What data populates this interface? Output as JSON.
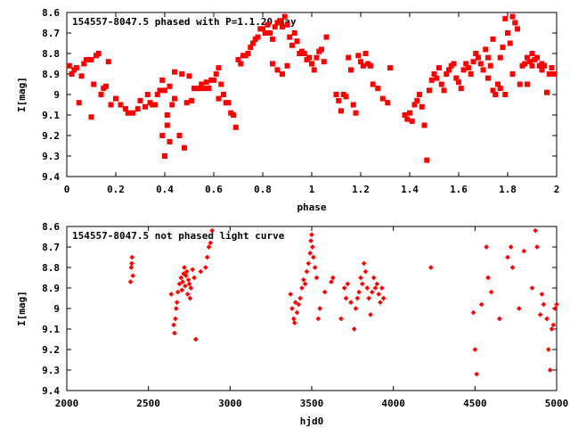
{
  "chart_data": [
    {
      "type": "scatter",
      "title": "154557-8047.5 phased with P=1.1.20 day",
      "xlabel": "phase",
      "ylabel": "I[mag]",
      "xlim": [
        0,
        2
      ],
      "ylim": [
        9.4,
        8.6
      ],
      "y_inverted": true,
      "x_ticks": [
        0,
        0.2,
        0.4,
        0.6,
        0.8,
        1,
        1.2,
        1.4,
        1.6,
        1.8,
        2
      ],
      "x_tick_labels": [
        "0",
        "0.2",
        "0.4",
        "0.6",
        "0.8",
        "1",
        "1.2",
        "1.4",
        "1.6",
        "1.8",
        "2"
      ],
      "y_ticks": [
        8.6,
        8.7,
        8.8,
        8.9,
        9.0,
        9.1,
        9.2,
        9.3,
        9.4
      ],
      "y_tick_labels": [
        "8.6",
        "8.7",
        "8.8",
        "8.9",
        "9",
        "9.1",
        "9.2",
        "9.3",
        "9.4"
      ],
      "marker_color": "#ff0000",
      "grid": false,
      "points": [
        [
          0.01,
          8.86
        ],
        [
          0.02,
          8.9
        ],
        [
          0.03,
          8.88
        ],
        [
          0.04,
          8.87
        ],
        [
          0.05,
          9.04
        ],
        [
          0.06,
          8.91
        ],
        [
          0.07,
          8.85
        ],
        [
          0.08,
          8.83
        ],
        [
          0.09,
          8.83
        ],
        [
          0.1,
          8.83
        ],
        [
          0.11,
          8.95
        ],
        [
          0.1,
          9.11
        ],
        [
          0.12,
          8.81
        ],
        [
          0.13,
          8.8
        ],
        [
          0.14,
          9.0
        ],
        [
          0.15,
          8.97
        ],
        [
          0.16,
          8.96
        ],
        [
          0.17,
          8.84
        ],
        [
          0.18,
          9.05
        ],
        [
          0.2,
          9.02
        ],
        [
          0.22,
          9.05
        ],
        [
          0.24,
          9.07
        ],
        [
          0.25,
          9.09
        ],
        [
          0.27,
          9.09
        ],
        [
          0.29,
          9.07
        ],
        [
          0.3,
          9.03
        ],
        [
          0.32,
          9.06
        ],
        [
          0.33,
          9.0
        ],
        [
          0.34,
          9.04
        ],
        [
          0.35,
          9.05
        ],
        [
          0.36,
          9.05
        ],
        [
          0.37,
          9.0
        ],
        [
          0.38,
          8.98
        ],
        [
          0.39,
          9.2
        ],
        [
          0.4,
          9.3
        ],
        [
          0.41,
          9.15
        ],
        [
          0.42,
          9.23
        ],
        [
          0.39,
          8.93
        ],
        [
          0.4,
          8.98
        ],
        [
          0.41,
          9.1
        ],
        [
          0.42,
          8.96
        ],
        [
          0.43,
          9.05
        ],
        [
          0.44,
          9.02
        ],
        [
          0.44,
          8.89
        ],
        [
          0.46,
          9.2
        ],
        [
          0.47,
          8.9
        ],
        [
          0.48,
          9.26
        ],
        [
          0.49,
          9.04
        ],
        [
          0.5,
          8.91
        ],
        [
          0.51,
          9.03
        ],
        [
          0.52,
          8.97
        ],
        [
          0.53,
          8.97
        ],
        [
          0.54,
          8.97
        ],
        [
          0.55,
          8.95
        ],
        [
          0.56,
          8.97
        ],
        [
          0.57,
          8.94
        ],
        [
          0.58,
          8.97
        ],
        [
          0.59,
          8.93
        ],
        [
          0.6,
          8.93
        ],
        [
          0.61,
          8.9
        ],
        [
          0.62,
          8.87
        ],
        [
          0.62,
          9.02
        ],
        [
          0.63,
          8.95
        ],
        [
          0.64,
          9.0
        ],
        [
          0.65,
          9.04
        ],
        [
          0.66,
          9.04
        ],
        [
          0.67,
          9.09
        ],
        [
          0.68,
          9.1
        ],
        [
          0.69,
          9.16
        ],
        [
          0.7,
          8.83
        ],
        [
          0.71,
          8.85
        ],
        [
          0.72,
          8.81
        ],
        [
          0.73,
          8.81
        ],
        [
          0.74,
          8.8
        ],
        [
          0.75,
          8.77
        ],
        [
          0.76,
          8.75
        ],
        [
          0.77,
          8.73
        ],
        [
          0.78,
          8.72
        ],
        [
          0.79,
          8.68
        ],
        [
          0.8,
          8.68
        ],
        [
          0.81,
          8.7
        ],
        [
          0.82,
          8.66
        ],
        [
          0.83,
          8.7
        ],
        [
          0.84,
          8.73
        ],
        [
          0.85,
          8.67
        ],
        [
          0.86,
          8.65
        ],
        [
          0.87,
          8.64
        ],
        [
          0.88,
          8.67
        ],
        [
          0.89,
          8.62
        ],
        [
          0.9,
          8.66
        ],
        [
          0.91,
          8.72
        ],
        [
          0.92,
          8.76
        ],
        [
          0.93,
          8.7
        ],
        [
          0.94,
          8.74
        ],
        [
          0.95,
          8.8
        ],
        [
          0.96,
          8.79
        ],
        [
          0.97,
          8.8
        ],
        [
          0.98,
          8.83
        ],
        [
          0.99,
          8.82
        ],
        [
          1.0,
          8.85
        ],
        [
          1.01,
          8.88
        ],
        [
          1.02,
          8.82
        ],
        [
          1.03,
          8.79
        ],
        [
          1.04,
          8.78
        ],
        [
          1.05,
          8.84
        ],
        [
          1.06,
          8.72
        ],
        [
          0.9,
          8.86
        ],
        [
          0.88,
          8.9
        ],
        [
          0.86,
          8.88
        ],
        [
          0.84,
          8.85
        ],
        [
          1.1,
          9.0
        ],
        [
          1.11,
          9.03
        ],
        [
          1.12,
          9.08
        ],
        [
          1.13,
          9.0
        ],
        [
          1.14,
          9.01
        ],
        [
          1.15,
          8.82
        ],
        [
          1.16,
          8.88
        ],
        [
          1.17,
          9.05
        ],
        [
          1.18,
          9.09
        ],
        [
          1.19,
          8.81
        ],
        [
          1.2,
          8.84
        ],
        [
          1.21,
          8.86
        ],
        [
          1.22,
          8.8
        ],
        [
          1.23,
          8.85
        ],
        [
          1.24,
          8.86
        ],
        [
          1.25,
          8.95
        ],
        [
          1.27,
          8.97
        ],
        [
          1.29,
          9.02
        ],
        [
          1.31,
          9.04
        ],
        [
          1.32,
          8.87
        ],
        [
          1.38,
          9.1
        ],
        [
          1.39,
          9.12
        ],
        [
          1.4,
          9.09
        ],
        [
          1.41,
          9.13
        ],
        [
          1.42,
          9.05
        ],
        [
          1.43,
          9.03
        ],
        [
          1.44,
          9.0
        ],
        [
          1.45,
          9.06
        ],
        [
          1.46,
          9.15
        ],
        [
          1.47,
          9.32
        ],
        [
          1.48,
          8.98
        ],
        [
          1.49,
          8.93
        ],
        [
          1.5,
          8.9
        ],
        [
          1.51,
          8.92
        ],
        [
          1.52,
          8.87
        ],
        [
          1.53,
          8.95
        ],
        [
          1.54,
          8.98
        ],
        [
          1.55,
          8.9
        ],
        [
          1.56,
          8.88
        ],
        [
          1.57,
          8.86
        ],
        [
          1.58,
          8.85
        ],
        [
          1.59,
          8.92
        ],
        [
          1.6,
          8.94
        ],
        [
          1.61,
          8.97
        ],
        [
          1.62,
          8.88
        ],
        [
          1.63,
          8.85
        ],
        [
          1.64,
          8.87
        ],
        [
          1.65,
          8.9
        ],
        [
          1.66,
          8.84
        ],
        [
          1.67,
          8.8
        ],
        [
          1.68,
          8.82
        ],
        [
          1.69,
          8.85
        ],
        [
          1.7,
          8.88
        ],
        [
          1.71,
          8.78
        ],
        [
          1.72,
          8.82
        ],
        [
          1.73,
          8.86
        ],
        [
          1.74,
          8.73
        ],
        [
          1.75,
          9.0
        ],
        [
          1.76,
          8.95
        ],
        [
          1.77,
          8.82
        ],
        [
          1.78,
          8.77
        ],
        [
          1.79,
          8.63
        ],
        [
          1.8,
          8.7
        ],
        [
          1.81,
          8.75
        ],
        [
          1.82,
          8.62
        ],
        [
          1.83,
          8.65
        ],
        [
          1.84,
          8.68
        ],
        [
          1.85,
          8.95
        ],
        [
          1.86,
          8.86
        ],
        [
          1.87,
          8.85
        ],
        [
          1.88,
          8.82
        ],
        [
          1.89,
          8.84
        ],
        [
          1.9,
          8.86
        ],
        [
          1.91,
          8.83
        ],
        [
          1.92,
          8.82
        ],
        [
          1.93,
          8.86
        ],
        [
          1.94,
          8.88
        ],
        [
          1.95,
          8.86
        ],
        [
          1.96,
          8.99
        ],
        [
          1.97,
          8.9
        ],
        [
          1.98,
          8.87
        ],
        [
          1.99,
          8.9
        ],
        [
          1.94,
          8.85
        ],
        [
          1.9,
          8.8
        ],
        [
          1.88,
          8.95
        ],
        [
          1.82,
          8.9
        ],
        [
          1.79,
          9.0
        ],
        [
          1.77,
          8.97
        ],
        [
          1.74,
          8.98
        ],
        [
          1.72,
          8.92
        ]
      ]
    },
    {
      "type": "scatter",
      "title": "154557-8047.5 not phased light curve",
      "xlabel": "hjd0",
      "ylabel": "I[mag]",
      "xlim": [
        2000,
        5000
      ],
      "ylim": [
        9.4,
        8.6
      ],
      "y_inverted": true,
      "x_ticks": [
        2000,
        2500,
        3000,
        3500,
        4000,
        4500,
        5000
      ],
      "x_tick_labels": [
        "2000",
        "2500",
        "3000",
        "3500",
        "4000",
        "4500",
        "5000"
      ],
      "y_ticks": [
        8.6,
        8.7,
        8.8,
        8.9,
        9.0,
        9.1,
        9.2,
        9.3,
        9.4
      ],
      "y_tick_labels": [
        "8.6",
        "8.7",
        "8.8",
        "8.9",
        "9",
        "9.1",
        "9.2",
        "9.3",
        "9.4"
      ],
      "marker_color": "#ff0000",
      "grid": false,
      "points": [
        [
          2390,
          8.87
        ],
        [
          2395,
          8.8
        ],
        [
          2400,
          8.75
        ],
        [
          2405,
          8.84
        ],
        [
          2398,
          8.78
        ],
        [
          2640,
          8.93
        ],
        [
          2655,
          9.08
        ],
        [
          2660,
          9.12
        ],
        [
          2665,
          9.05
        ],
        [
          2670,
          9.0
        ],
        [
          2675,
          8.97
        ],
        [
          2680,
          8.92
        ],
        [
          2690,
          8.88
        ],
        [
          2700,
          8.85
        ],
        [
          2705,
          8.91
        ],
        [
          2710,
          8.87
        ],
        [
          2715,
          8.83
        ],
        [
          2720,
          8.8
        ],
        [
          2725,
          8.89
        ],
        [
          2730,
          8.84
        ],
        [
          2735,
          8.82
        ],
        [
          2740,
          8.93
        ],
        [
          2745,
          8.86
        ],
        [
          2750,
          8.88
        ],
        [
          2755,
          8.95
        ],
        [
          2760,
          8.9
        ],
        [
          2770,
          8.81
        ],
        [
          2780,
          8.85
        ],
        [
          2790,
          9.15
        ],
        [
          2820,
          8.82
        ],
        [
          2850,
          8.8
        ],
        [
          2860,
          8.75
        ],
        [
          2870,
          8.7
        ],
        [
          2880,
          8.68
        ],
        [
          2890,
          8.62
        ],
        [
          3370,
          8.93
        ],
        [
          3380,
          9.0
        ],
        [
          3390,
          9.05
        ],
        [
          3395,
          9.07
        ],
        [
          3400,
          8.97
        ],
        [
          3410,
          9.02
        ],
        [
          3420,
          8.98
        ],
        [
          3430,
          8.95
        ],
        [
          3440,
          8.9
        ],
        [
          3450,
          8.86
        ],
        [
          3460,
          8.88
        ],
        [
          3470,
          8.82
        ],
        [
          3480,
          8.78
        ],
        [
          3490,
          8.73
        ],
        [
          3495,
          8.67
        ],
        [
          3500,
          8.64
        ],
        [
          3505,
          8.7
        ],
        [
          3510,
          8.75
        ],
        [
          3520,
          8.8
        ],
        [
          3530,
          8.85
        ],
        [
          3540,
          9.05
        ],
        [
          3550,
          9.0
        ],
        [
          3580,
          8.92
        ],
        [
          3620,
          8.87
        ],
        [
          3630,
          8.85
        ],
        [
          3680,
          9.05
        ],
        [
          3700,
          8.9
        ],
        [
          3710,
          8.95
        ],
        [
          3720,
          8.88
        ],
        [
          3740,
          8.97
        ],
        [
          3760,
          9.1
        ],
        [
          3770,
          9.0
        ],
        [
          3780,
          8.95
        ],
        [
          3790,
          8.92
        ],
        [
          3800,
          8.85
        ],
        [
          3810,
          8.88
        ],
        [
          3820,
          8.78
        ],
        [
          3830,
          8.82
        ],
        [
          3840,
          8.9
        ],
        [
          3850,
          8.95
        ],
        [
          3860,
          9.03
        ],
        [
          3870,
          8.92
        ],
        [
          3880,
          8.85
        ],
        [
          3890,
          8.9
        ],
        [
          3900,
          8.88
        ],
        [
          3910,
          8.93
        ],
        [
          3920,
          8.97
        ],
        [
          3930,
          8.9
        ],
        [
          3940,
          8.95
        ],
        [
          4230,
          8.8
        ],
        [
          4490,
          9.02
        ],
        [
          4500,
          9.2
        ],
        [
          4510,
          9.32
        ],
        [
          4540,
          8.98
        ],
        [
          4570,
          8.7
        ],
        [
          4580,
          8.85
        ],
        [
          4600,
          8.92
        ],
        [
          4650,
          9.05
        ],
        [
          4700,
          8.75
        ],
        [
          4720,
          8.7
        ],
        [
          4730,
          8.8
        ],
        [
          4770,
          9.0
        ],
        [
          4800,
          8.72
        ],
        [
          4850,
          8.9
        ],
        [
          4870,
          8.62
        ],
        [
          4880,
          8.7
        ],
        [
          4900,
          9.03
        ],
        [
          4910,
          8.93
        ],
        [
          4920,
          8.98
        ],
        [
          4940,
          9.05
        ],
        [
          4950,
          9.2
        ],
        [
          4960,
          9.3
        ],
        [
          4970,
          9.1
        ],
        [
          4980,
          9.08
        ],
        [
          4990,
          9.0
        ],
        [
          5000,
          8.98
        ]
      ]
    }
  ]
}
